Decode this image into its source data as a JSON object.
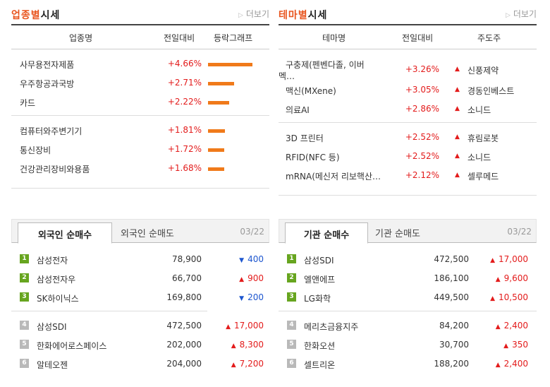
{
  "industry": {
    "title_accent": "업종별",
    "title_rest": "시세",
    "more": "더보기",
    "headers": [
      "업종명",
      "전일대비",
      "등락그래프"
    ],
    "rows": [
      {
        "name": "사무용전자제품",
        "change": "+4.66%",
        "pct": 4.66
      },
      {
        "name": "우주항공과국방",
        "change": "+2.71%",
        "pct": 2.71
      },
      {
        "name": "카드",
        "change": "+2.22%",
        "pct": 2.22
      },
      {
        "name": "컴퓨터와주변기기",
        "change": "+1.81%",
        "pct": 1.81
      },
      {
        "name": "통신장비",
        "change": "+1.72%",
        "pct": 1.72
      },
      {
        "name": "건강관리장비와용품",
        "change": "+1.68%",
        "pct": 1.68
      }
    ]
  },
  "theme": {
    "title_accent": "테마별",
    "title_rest": "시세",
    "more": "더보기",
    "headers": [
      "테마명",
      "전일대비",
      "주도주"
    ],
    "rows": [
      {
        "name1": "구충제(펜벤다졸, 이버",
        "name2": "멕…",
        "change": "+3.26%",
        "leader": "신풍제약"
      },
      {
        "name1": "맥신(MXene)",
        "name2": "",
        "change": "+3.05%",
        "leader": "경동인베스트"
      },
      {
        "name1": "의료AI",
        "name2": "",
        "change": "+2.86%",
        "leader": "소니드"
      },
      {
        "name1": "3D 프린터",
        "name2": "",
        "change": "+2.52%",
        "leader": "휴림로봇"
      },
      {
        "name1": "RFID(NFC 등)",
        "name2": "",
        "change": "+2.52%",
        "leader": "소니드"
      },
      {
        "name1": "mRNA(메신저 리보핵산…",
        "name2": "",
        "change": "+2.12%",
        "leader": "셀루메드"
      }
    ]
  },
  "foreign": {
    "tab_active": "외국인 순매수",
    "tab_inactive": "외국인 순매도",
    "date": "03/22",
    "rows": [
      {
        "rank": "1",
        "name": "삼성전자",
        "price": "78,900",
        "dir": "down",
        "change": "400"
      },
      {
        "rank": "2",
        "name": "삼성전자우",
        "price": "66,700",
        "dir": "up",
        "change": "900"
      },
      {
        "rank": "3",
        "name": "SK하이닉스",
        "price": "169,800",
        "dir": "down",
        "change": "200"
      },
      {
        "rank": "4",
        "name": "삼성SDI",
        "price": "472,500",
        "dir": "up",
        "change": "17,000"
      },
      {
        "rank": "5",
        "name": "한화에어로스페이스",
        "price": "202,000",
        "dir": "up",
        "change": "8,300"
      },
      {
        "rank": "6",
        "name": "알테오젠",
        "price": "204,000",
        "dir": "up",
        "change": "7,200"
      }
    ]
  },
  "institution": {
    "tab_active": "기관 순매수",
    "tab_inactive": "기관 순매도",
    "date": "03/22",
    "rows": [
      {
        "rank": "1",
        "name": "삼성SDI",
        "price": "472,500",
        "dir": "up",
        "change": "17,000"
      },
      {
        "rank": "2",
        "name": "엘앤에프",
        "price": "186,100",
        "dir": "up",
        "change": "9,600"
      },
      {
        "rank": "3",
        "name": "LG화학",
        "price": "449,500",
        "dir": "up",
        "change": "10,500"
      },
      {
        "rank": "4",
        "name": "메리츠금융지주",
        "price": "84,200",
        "dir": "up",
        "change": "2,400"
      },
      {
        "rank": "5",
        "name": "한화오션",
        "price": "30,700",
        "dir": "up",
        "change": "350"
      },
      {
        "rank": "6",
        "name": "셀트리온",
        "price": "188,200",
        "dir": "up",
        "change": "2,400"
      }
    ]
  },
  "colors": {
    "up": "#e31b1b",
    "down": "#1d56cf",
    "accent": "#e8541d",
    "bar": "#f07a1a"
  },
  "icons": {
    "more": "caret-right-icon",
    "up": "triangle-up-icon",
    "down": "triangle-down-icon"
  }
}
